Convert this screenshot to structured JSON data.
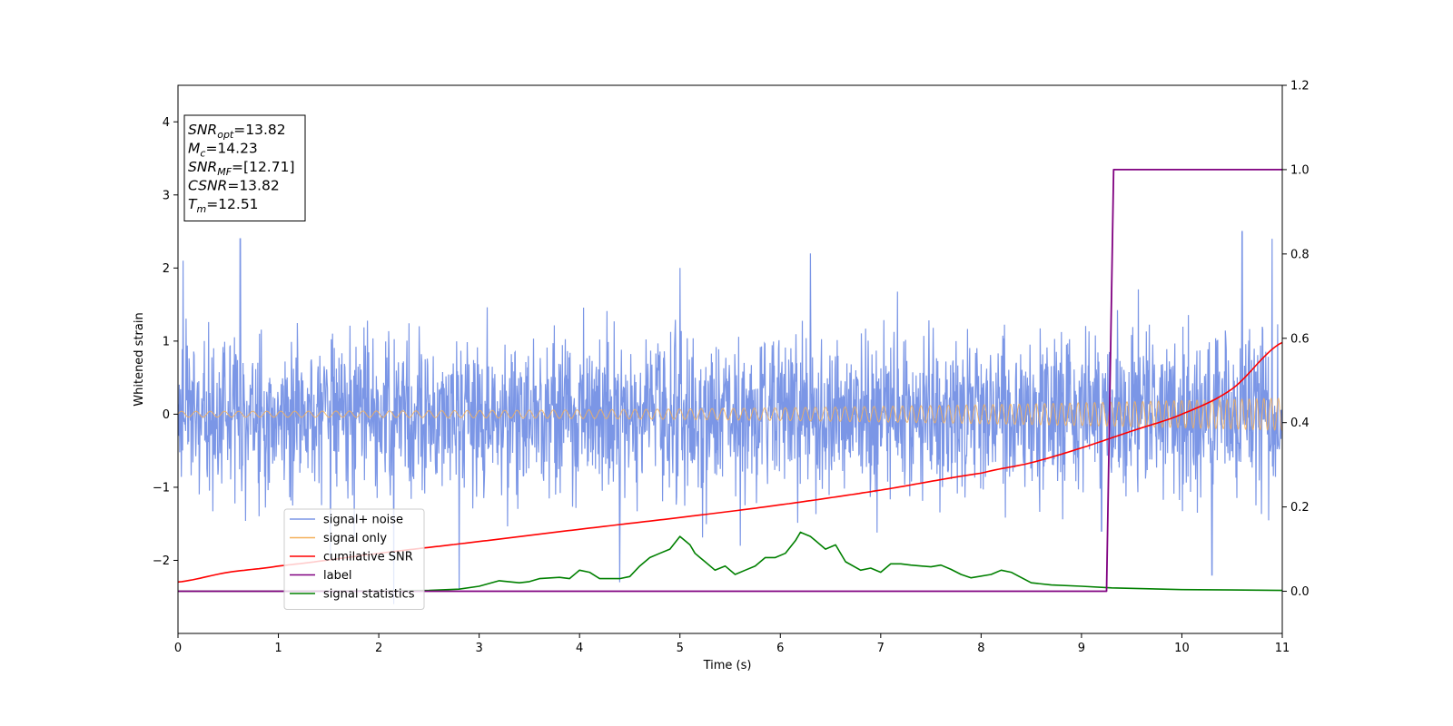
{
  "chart_data": {
    "type": "line",
    "title": "",
    "xlabel": "Time (s)",
    "ylabel": "Whitened strain",
    "xlim": [
      0,
      11
    ],
    "ylim_left": [
      -3,
      4.5
    ],
    "ylim_right": [
      -0.1,
      1.2
    ],
    "xticks": [
      "0",
      "1",
      "2",
      "3",
      "4",
      "5",
      "6",
      "7",
      "8",
      "9",
      "10",
      "11"
    ],
    "yticks_left": [
      "−2",
      "−1",
      "0",
      "1",
      "2",
      "3",
      "4"
    ],
    "yticks_right": [
      "0.0",
      "0.2",
      "0.4",
      "0.6",
      "0.8",
      "1.0",
      "1.2"
    ],
    "grid": false,
    "legend_location": "lower-left",
    "legend": [
      {
        "label": "signal+ noise",
        "color": "#7b96e6"
      },
      {
        "label": "signal only",
        "color": "#f5b05a"
      },
      {
        "label": "cumilative SNR",
        "color": "#ff0000"
      },
      {
        "label": "label",
        "color": "#800080"
      },
      {
        "label": "signal statistics",
        "color": "#008000"
      }
    ],
    "annotation": {
      "lines": [
        {
          "sym": "SNR",
          "sub": "opt",
          "value": "=13.82"
        },
        {
          "sym": "M",
          "sub": "c",
          "value": "=14.23"
        },
        {
          "sym": "SNR",
          "sub": "MF",
          "value": "=[12.71]"
        },
        {
          "sym": "CSNR",
          "sub": "",
          "value": "=13.82"
        },
        {
          "sym": "T",
          "sub": "m",
          "value": "=12.51"
        }
      ]
    },
    "series": [
      {
        "name": "signal+ noise",
        "axis": "left",
        "description": "dense noisy strain, amplitude roughly ±1.5 with peaks to ±2.4",
        "sigma": 0.55,
        "extremes": [
          [
            0.05,
            2.1
          ],
          [
            0.62,
            2.4
          ],
          [
            1.52,
            -2.0
          ],
          [
            2.15,
            -2.6
          ],
          [
            2.8,
            -2.4
          ],
          [
            4.4,
            -2.3
          ],
          [
            5.0,
            2.0
          ],
          [
            5.6,
            -1.8
          ],
          [
            6.3,
            2.2
          ],
          [
            9.2,
            -1.6
          ],
          [
            10.3,
            -2.2
          ],
          [
            10.6,
            2.5
          ],
          [
            10.9,
            2.4
          ]
        ]
      },
      {
        "name": "signal only",
        "axis": "left",
        "description": "chirp, amplitude grows from ~0.05 to ~0.22 near t=11",
        "amp_start": 0.04,
        "amp_end": 0.22
      },
      {
        "name": "cumilative SNR",
        "axis": "right",
        "x": [
          0,
          0.5,
          1,
          2,
          3,
          4,
          5,
          6,
          7,
          8,
          8.5,
          9,
          9.5,
          10,
          10.5,
          11
        ],
        "y": [
          0.022,
          0.045,
          0.06,
          0.09,
          0.118,
          0.147,
          0.175,
          0.205,
          0.24,
          0.28,
          0.305,
          0.34,
          0.38,
          0.42,
          0.48,
          0.59
        ]
      },
      {
        "name": "label",
        "axis": "right",
        "x": [
          0,
          9.25,
          9.32,
          11
        ],
        "y": [
          0.0,
          0.0,
          1.0,
          1.0
        ]
      },
      {
        "name": "signal statistics",
        "axis": "right",
        "x": [
          0,
          1,
          2,
          2.5,
          2.8,
          3.0,
          3.2,
          3.4,
          3.5,
          3.6,
          3.8,
          3.9,
          4.0,
          4.1,
          4.2,
          4.4,
          4.5,
          4.6,
          4.7,
          4.8,
          4.9,
          5.0,
          5.05,
          5.1,
          5.15,
          5.2,
          5.25,
          5.35,
          5.45,
          5.55,
          5.65,
          5.75,
          5.85,
          5.95,
          6.05,
          6.15,
          6.2,
          6.3,
          6.35,
          6.45,
          6.55,
          6.65,
          6.8,
          6.9,
          7.0,
          7.1,
          7.2,
          7.3,
          7.5,
          7.6,
          7.7,
          7.8,
          7.9,
          8.1,
          8.2,
          8.3,
          8.5,
          8.7,
          9.0,
          9.3,
          10,
          10.5,
          11
        ],
        "y": [
          0.0,
          0.0,
          0.001,
          0.002,
          0.005,
          0.012,
          0.025,
          0.02,
          0.023,
          0.03,
          0.033,
          0.03,
          0.05,
          0.045,
          0.03,
          0.03,
          0.035,
          0.06,
          0.08,
          0.09,
          0.1,
          0.13,
          0.12,
          0.11,
          0.09,
          0.08,
          0.07,
          0.05,
          0.06,
          0.04,
          0.05,
          0.06,
          0.08,
          0.08,
          0.09,
          0.12,
          0.14,
          0.13,
          0.12,
          0.1,
          0.11,
          0.07,
          0.05,
          0.055,
          0.045,
          0.065,
          0.065,
          0.062,
          0.058,
          0.062,
          0.052,
          0.04,
          0.032,
          0.04,
          0.05,
          0.045,
          0.02,
          0.015,
          0.012,
          0.008,
          0.004,
          0.003,
          0.002
        ]
      }
    ]
  }
}
